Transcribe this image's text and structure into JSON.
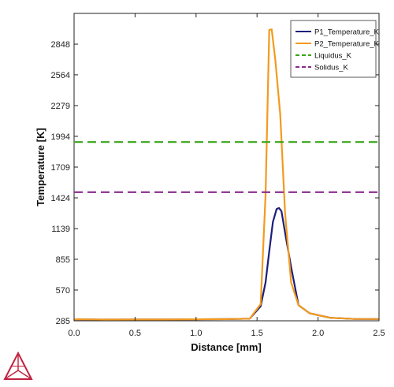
{
  "colors": {
    "p1": "#1b1f7a",
    "p2": "#f39a1e",
    "liquidus": "#3aa41a",
    "solidus": "#8b2a8f",
    "logo": "#c0223f"
  },
  "chart_data": {
    "type": "line",
    "title": "",
    "xlabel": "Distance [mm]",
    "ylabel": "Temperature [K]",
    "xlim": [
      0,
      2.5
    ],
    "ylim": [
      285,
      3133
    ],
    "xticks": [
      0.0,
      0.5,
      1.0,
      1.5,
      2.0,
      2.5
    ],
    "xtick_labels": [
      "0.0",
      "0.5",
      "1.0",
      "1.5",
      "2.0",
      "2.5"
    ],
    "yticks": [
      285,
      570,
      855,
      1139,
      1424,
      1709,
      1994,
      2279,
      2564,
      2848
    ],
    "ytick_labels": [
      "285",
      "570",
      "855",
      "1139",
      "1424",
      "1709",
      "1994",
      "2279",
      "2564",
      "2848"
    ],
    "legend_position": "top-right",
    "grid": false,
    "series": [
      {
        "name": "P1_Temperature_K",
        "color": "#1b1f7a",
        "style": "solid",
        "x": [
          0.0,
          0.25,
          0.5,
          0.75,
          1.0,
          1.25,
          1.44,
          1.53,
          1.57,
          1.6,
          1.63,
          1.66,
          1.68,
          1.7,
          1.73,
          1.78,
          1.84,
          1.93,
          2.1,
          2.3,
          2.5
        ],
        "y": [
          299,
          296,
          297,
          297,
          299,
          300,
          305,
          420,
          640,
          930,
          1200,
          1320,
          1330,
          1300,
          1100,
          780,
          430,
          355,
          313,
          302,
          301
        ]
      },
      {
        "name": "P2_Temperature_K",
        "color": "#f39a1e",
        "style": "solid",
        "x": [
          0.0,
          0.25,
          0.5,
          0.75,
          1.0,
          1.25,
          1.44,
          1.53,
          1.57,
          1.6,
          1.62,
          1.65,
          1.69,
          1.73,
          1.78,
          1.84,
          1.93,
          2.1,
          2.3,
          2.5
        ],
        "y": [
          299,
          296,
          297,
          297,
          299,
          300,
          305,
          440,
          1450,
          2980,
          2985,
          2700,
          2200,
          1280,
          640,
          430,
          355,
          313,
          302,
          301
        ]
      },
      {
        "name": "Liquidus_K",
        "color": "#3aa41a",
        "style": "dashed",
        "x": [
          0.0,
          2.5
        ],
        "y": [
          1941,
          1941
        ]
      },
      {
        "name": "Solidus_K",
        "color": "#8b2a8f",
        "style": "dashed",
        "x": [
          0.0,
          2.5
        ],
        "y": [
          1477,
          1477
        ]
      }
    ]
  }
}
